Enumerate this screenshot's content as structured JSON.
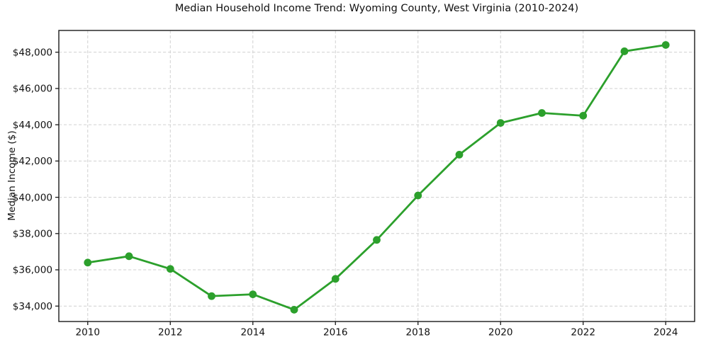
{
  "chart_data": {
    "type": "line",
    "title": "Median Household Income Trend: Wyoming County, West Virginia (2010-2024)",
    "xlabel": "",
    "ylabel": "Median Income ($)",
    "series": [
      {
        "name": "Median household income",
        "x": [
          2010,
          2011,
          2012,
          2013,
          2014,
          2015,
          2016,
          2017,
          2018,
          2019,
          2020,
          2021,
          2022,
          2023,
          2024
        ],
        "values": [
          36400,
          36750,
          36050,
          34550,
          34650,
          33800,
          35500,
          37650,
          40100,
          42350,
          44100,
          44650,
          44500,
          48050,
          48400
        ]
      }
    ],
    "xlim": [
      2009.3,
      2024.7
    ],
    "ylim": [
      33150,
      49200
    ],
    "x_ticks": [
      2010,
      2012,
      2014,
      2016,
      2018,
      2020,
      2022,
      2024
    ],
    "x_tick_labels": [
      "2010",
      "2012",
      "2014",
      "2016",
      "2018",
      "2020",
      "2022",
      "2024"
    ],
    "y_ticks": [
      34000,
      36000,
      38000,
      40000,
      42000,
      44000,
      46000,
      48000
    ],
    "y_tick_labels": [
      "$34,000",
      "$36,000",
      "$38,000",
      "$40,000",
      "$42,000",
      "$44,000",
      "$46,000",
      "$48,000"
    ],
    "grid": true,
    "grid_style": "dashed",
    "legend_position": "none",
    "colors": {
      "line": "#2ca02c",
      "marker": "#2ca02c",
      "grid": "#d0d0d0",
      "spine": "#1a1a1a",
      "tick_text": "#111111",
      "background": "#ffffff"
    }
  }
}
